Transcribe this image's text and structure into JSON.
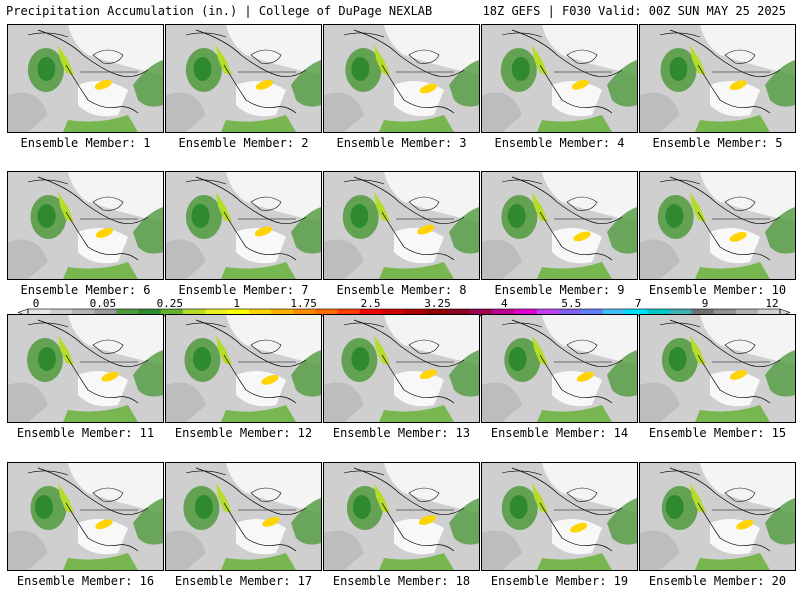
{
  "header": {
    "title_left": "Precipitation Accumulation (in.) | College of DuPage NEXLAB",
    "title_right": "18Z GEFS | F030 Valid: 00Z SUN MAY 25 2025"
  },
  "members": [
    {
      "label": "Ensemble Member: 1"
    },
    {
      "label": "Ensemble Member: 2"
    },
    {
      "label": "Ensemble Member: 3"
    },
    {
      "label": "Ensemble Member: 4"
    },
    {
      "label": "Ensemble Member: 5"
    },
    {
      "label": "Ensemble Member: 6"
    },
    {
      "label": "Ensemble Member: 7"
    },
    {
      "label": "Ensemble Member: 8"
    },
    {
      "label": "Ensemble Member: 9"
    },
    {
      "label": "Ensemble Member: 10"
    },
    {
      "label": "Ensemble Member: 11"
    },
    {
      "label": "Ensemble Member: 12"
    },
    {
      "label": "Ensemble Member: 13"
    },
    {
      "label": "Ensemble Member: 14"
    },
    {
      "label": "Ensemble Member: 15"
    },
    {
      "label": "Ensemble Member: 16"
    },
    {
      "label": "Ensemble Member: 17"
    },
    {
      "label": "Ensemble Member: 18"
    },
    {
      "label": "Ensemble Member: 19"
    },
    {
      "label": "Ensemble Member: 20"
    }
  ],
  "colorbar": {
    "tick_labels": [
      "0",
      "0.05",
      "0.25",
      "1",
      "1.75",
      "2.5",
      "3.25",
      "4",
      "5.5",
      "7",
      "9",
      "12"
    ],
    "colors": [
      "#e6e6e6",
      "#cfcfcf",
      "#b4b4b4",
      "#9a9a9a",
      "#4f9a3c",
      "#2f8a2f",
      "#62b02e",
      "#b6dc2a",
      "#e8f020",
      "#ffff00",
      "#ffd400",
      "#ffb000",
      "#ff8c00",
      "#ff6a00",
      "#ff3c00",
      "#f00000",
      "#d00000",
      "#b00000",
      "#900000",
      "#8a0020",
      "#a00050",
      "#c00090",
      "#e000d0",
      "#c040f0",
      "#8060f0",
      "#6080ff",
      "#40c0ff",
      "#00e0ff",
      "#00c8c8",
      "#40b0b0",
      "#707070",
      "#909090",
      "#b0b0b0",
      "#d0d0d0"
    ]
  }
}
